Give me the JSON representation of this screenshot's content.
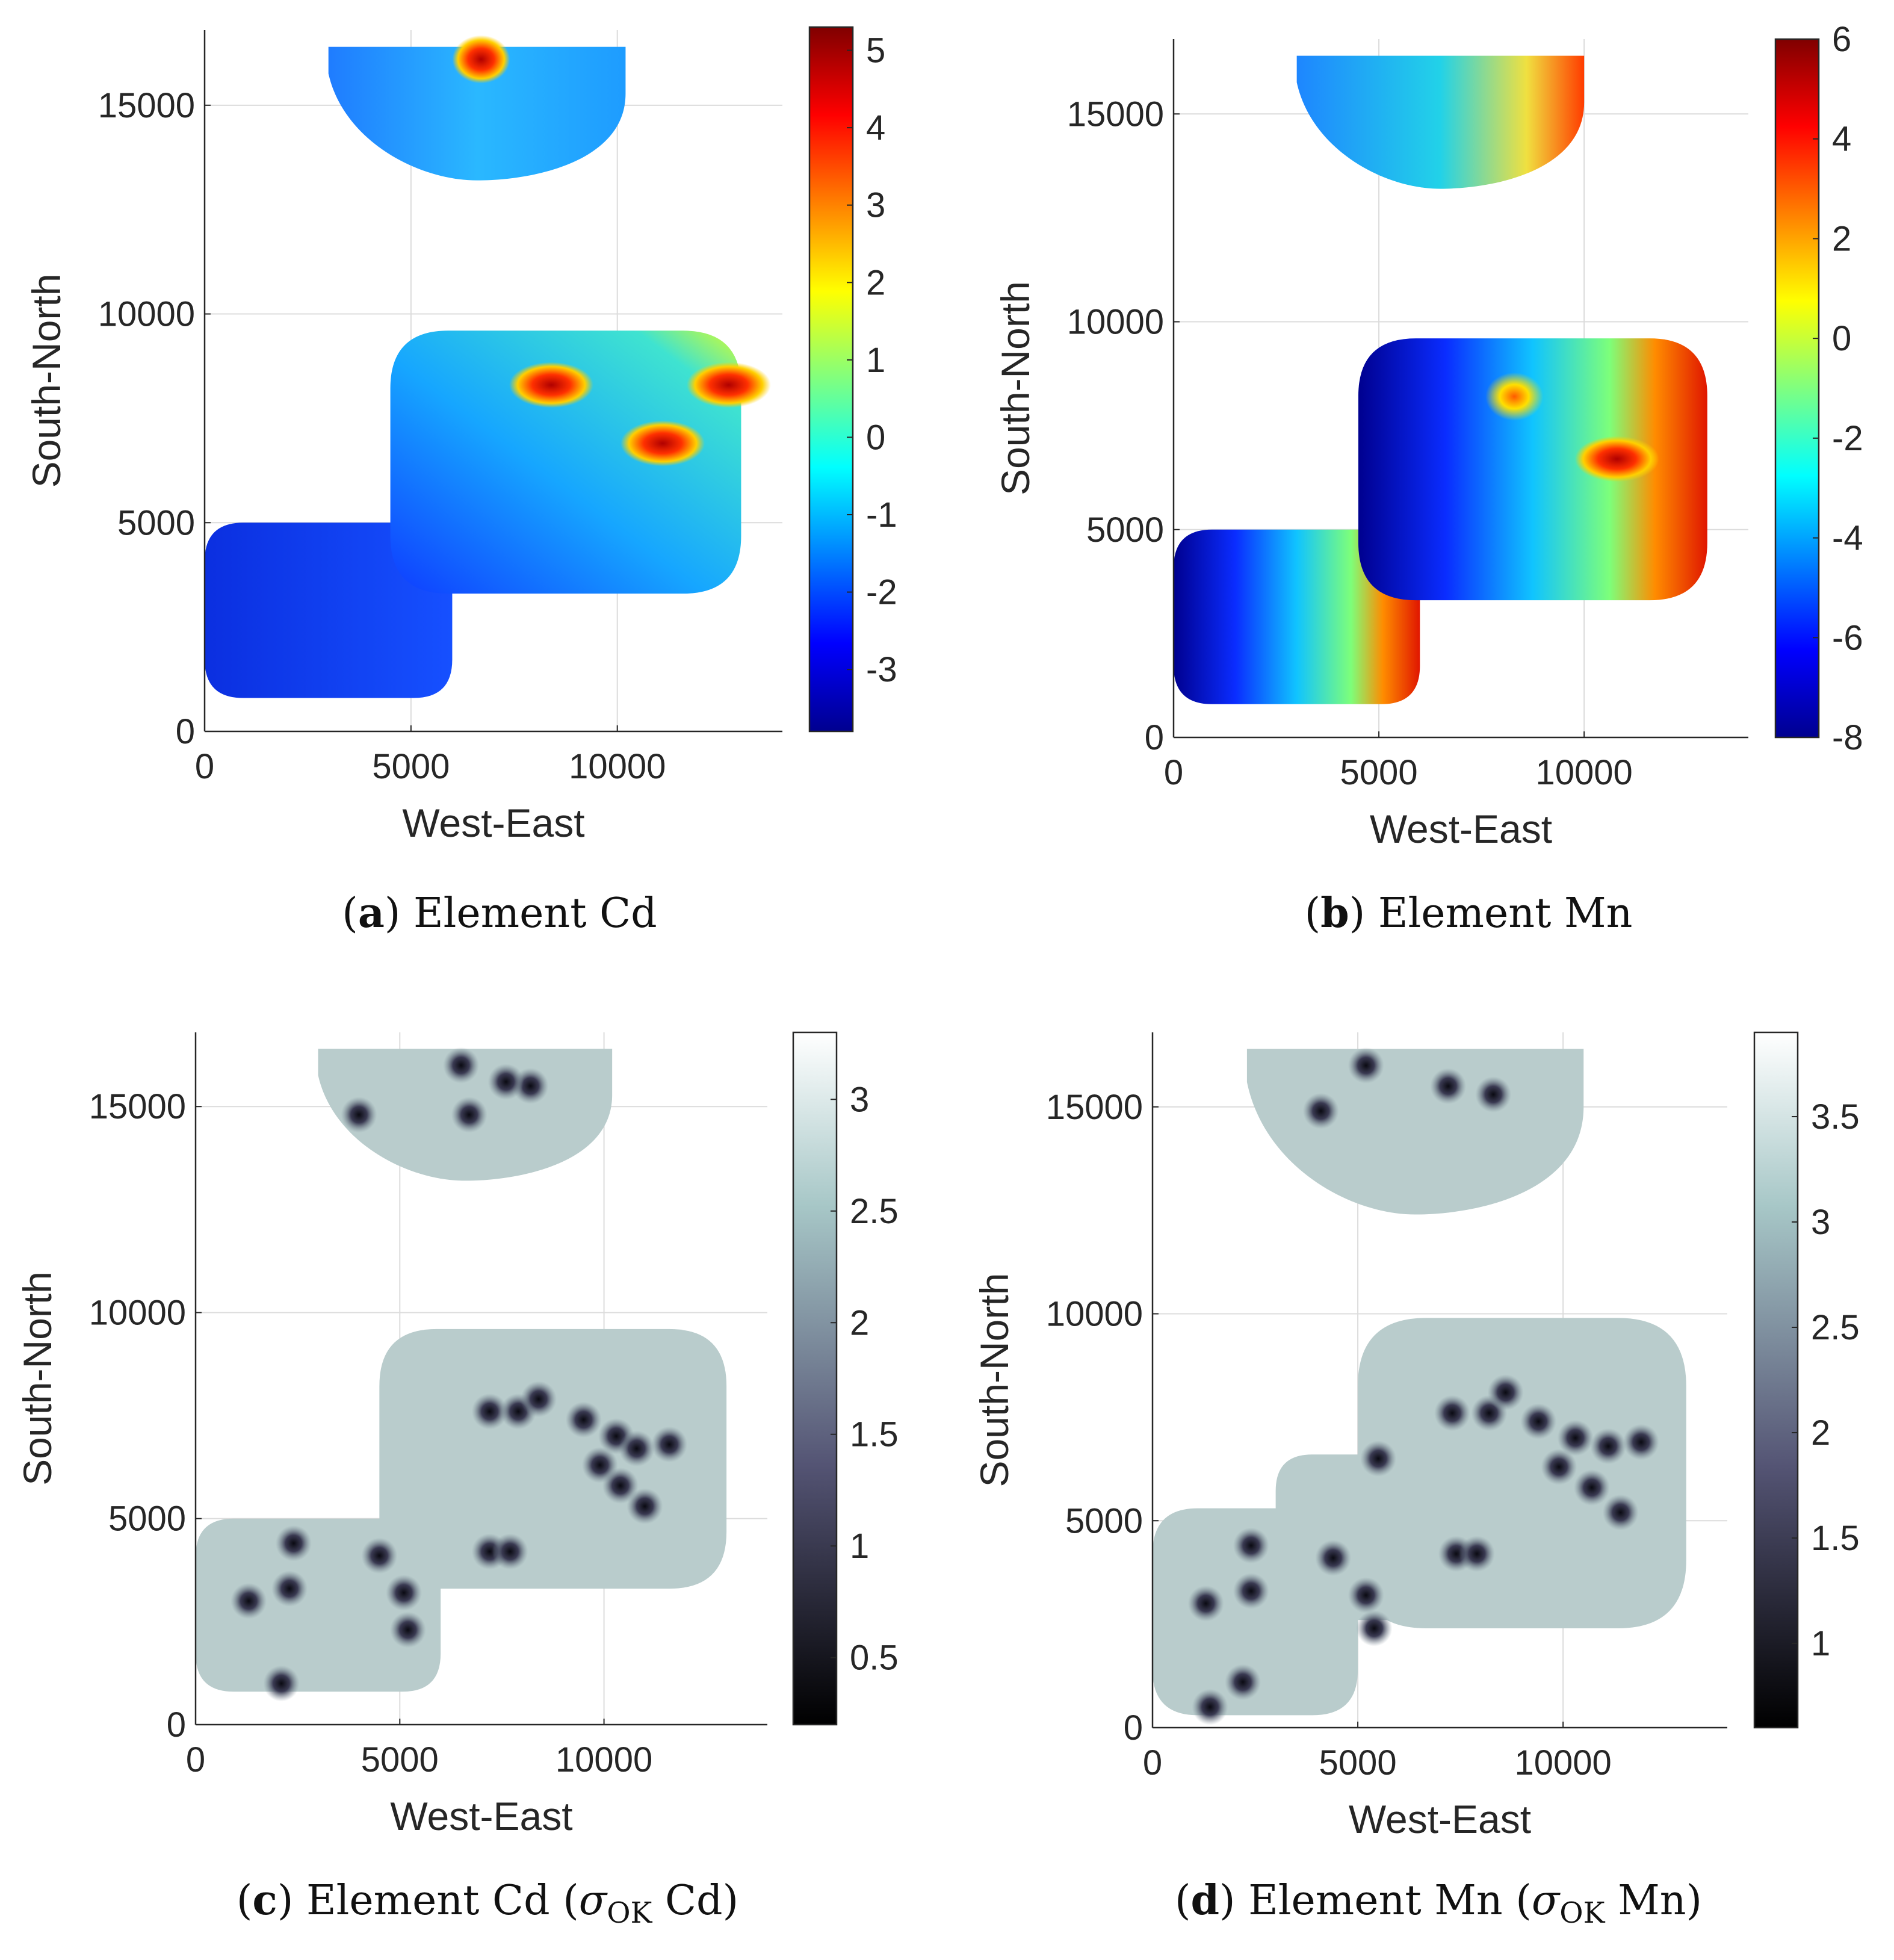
{
  "chart_data": [
    {
      "panel": "a",
      "type": "heatmap",
      "title": "",
      "caption": {
        "letter": "a",
        "text": "Element Cd"
      },
      "xlabel": "West-East",
      "ylabel": "South-North",
      "xlim": [
        0,
        14000
      ],
      "ylim": [
        0,
        16800
      ],
      "xticks": [
        0,
        5000,
        10000
      ],
      "yticks": [
        0,
        5000,
        10000,
        15000
      ],
      "grid": true,
      "colormap": "jet",
      "clim": [
        -3.8,
        5.3
      ],
      "cbar_ticks": [
        -3,
        -2,
        -1,
        0,
        1,
        2,
        3,
        4,
        5
      ],
      "regions": [
        {
          "name": "north",
          "x": [
            3000,
            10200
          ],
          "y": [
            13200,
            16400
          ]
        },
        {
          "name": "south-west",
          "x": [
            0,
            6000
          ],
          "y": [
            800,
            5000
          ]
        },
        {
          "name": "south-east",
          "x": [
            4500,
            13000
          ],
          "y": [
            3300,
            9600
          ]
        }
      ],
      "hotspots": [
        {
          "x": 6700,
          "y": 16100,
          "value": 3
        },
        {
          "x": 8400,
          "y": 8300,
          "value": 4
        },
        {
          "x": 11100,
          "y": 6900,
          "value": 5
        },
        {
          "x": 12700,
          "y": 8300,
          "value": 4
        }
      ]
    },
    {
      "panel": "b",
      "type": "heatmap",
      "title": "",
      "caption": {
        "letter": "b",
        "text": "Element Mn"
      },
      "xlabel": "West-East",
      "ylabel": "South-North",
      "xlim": [
        0,
        14000
      ],
      "ylim": [
        0,
        16800
      ],
      "xticks": [
        0,
        5000,
        10000
      ],
      "yticks": [
        0,
        5000,
        10000,
        15000
      ],
      "grid": true,
      "colormap": "jet",
      "clim": [
        -8,
        6
      ],
      "cbar_ticks": [
        -8,
        -6,
        -4,
        -2,
        0,
        2,
        4,
        6
      ],
      "regions": [
        {
          "name": "north",
          "x": [
            3000,
            10000
          ],
          "y": [
            13200,
            16400
          ]
        },
        {
          "name": "south-west",
          "x": [
            0,
            6000
          ],
          "y": [
            800,
            5000
          ]
        },
        {
          "name": "south-east",
          "x": [
            4500,
            13000
          ],
          "y": [
            3300,
            9600
          ]
        }
      ],
      "hotspots": [
        {
          "x": 10800,
          "y": 6700,
          "value": 4
        },
        {
          "x": 8300,
          "y": 8200,
          "value": 1
        }
      ]
    },
    {
      "panel": "c",
      "type": "heatmap",
      "title": "",
      "caption": {
        "letter": "c",
        "text": "Element Cd (",
        "sigma": "σ",
        "sub": "OK",
        "text2": " Cd)"
      },
      "xlabel": "West-East",
      "ylabel": "South-North",
      "xlim": [
        0,
        14000
      ],
      "ylim": [
        0,
        16800
      ],
      "xticks": [
        0,
        5000,
        10000
      ],
      "yticks": [
        0,
        5000,
        10000,
        15000
      ],
      "grid": true,
      "colormap": "bone",
      "clim": [
        0.2,
        3.3
      ],
      "cbar_ticks": [
        0.5,
        1,
        1.5,
        2,
        2.5,
        3
      ],
      "regions": [
        {
          "name": "north",
          "x": [
            3000,
            10200
          ],
          "y": [
            13200,
            16400
          ]
        },
        {
          "name": "south-west",
          "x": [
            0,
            6000
          ],
          "y": [
            800,
            5000
          ]
        },
        {
          "name": "south-east",
          "x": [
            4500,
            13000
          ],
          "y": [
            3300,
            9600
          ]
        }
      ],
      "sample_points": [
        [
          2100,
          1000
        ],
        [
          1300,
          3000
        ],
        [
          2300,
          3300
        ],
        [
          2400,
          4400
        ],
        [
          5200,
          2300
        ],
        [
          5100,
          3200
        ],
        [
          4500,
          4100
        ],
        [
          7200,
          4200
        ],
        [
          7700,
          4200
        ],
        [
          7200,
          7600
        ],
        [
          7900,
          7600
        ],
        [
          8400,
          7900
        ],
        [
          9500,
          7400
        ],
        [
          10300,
          7000
        ],
        [
          9900,
          6300
        ],
        [
          10800,
          6700
        ],
        [
          11600,
          6800
        ],
        [
          10400,
          5800
        ],
        [
          11000,
          5300
        ],
        [
          8200,
          15500
        ],
        [
          7600,
          15600
        ],
        [
          6500,
          16000
        ],
        [
          4000,
          14800
        ],
        [
          6700,
          14800
        ]
      ]
    },
    {
      "panel": "d",
      "type": "heatmap",
      "title": "",
      "caption": {
        "letter": "d",
        "text": "Element Mn (",
        "sigma": "σ",
        "sub": "OK",
        "text2": " Mn)"
      },
      "xlabel": "West-East",
      "ylabel": "South-North",
      "xlim": [
        0,
        14000
      ],
      "ylim": [
        0,
        16800
      ],
      "xticks": [
        0,
        5000,
        10000
      ],
      "yticks": [
        0,
        5000,
        10000,
        15000
      ],
      "grid": true,
      "colormap": "bone",
      "clim": [
        0.6,
        3.9
      ],
      "cbar_ticks": [
        1,
        1.5,
        2,
        2.5,
        3,
        3.5
      ],
      "regions": [
        {
          "name": "north",
          "x": [
            2300,
            10500
          ],
          "y": [
            12400,
            16400
          ]
        },
        {
          "name": "west",
          "x": [
            0,
            5000
          ],
          "y": [
            300,
            5300
          ]
        },
        {
          "name": "center",
          "x": [
            3000,
            8000
          ],
          "y": [
            2600,
            6600
          ]
        },
        {
          "name": "east",
          "x": [
            5000,
            13000
          ],
          "y": [
            2400,
            9900
          ]
        }
      ],
      "sample_points": [
        [
          1400,
          500
        ],
        [
          2200,
          1100
        ],
        [
          1300,
          3000
        ],
        [
          2400,
          3300
        ],
        [
          2400,
          4400
        ],
        [
          4400,
          4100
        ],
        [
          5200,
          3200
        ],
        [
          5400,
          2400
        ],
        [
          5500,
          6500
        ],
        [
          7400,
          4200
        ],
        [
          7900,
          4200
        ],
        [
          7300,
          7600
        ],
        [
          8200,
          7600
        ],
        [
          8600,
          8100
        ],
        [
          9400,
          7400
        ],
        [
          10300,
          7000
        ],
        [
          9900,
          6300
        ],
        [
          11100,
          6800
        ],
        [
          11900,
          6900
        ],
        [
          10700,
          5800
        ],
        [
          11400,
          5200
        ],
        [
          8300,
          15300
        ],
        [
          7200,
          15500
        ],
        [
          5200,
          16000
        ],
        [
          4100,
          14900
        ]
      ]
    }
  ]
}
